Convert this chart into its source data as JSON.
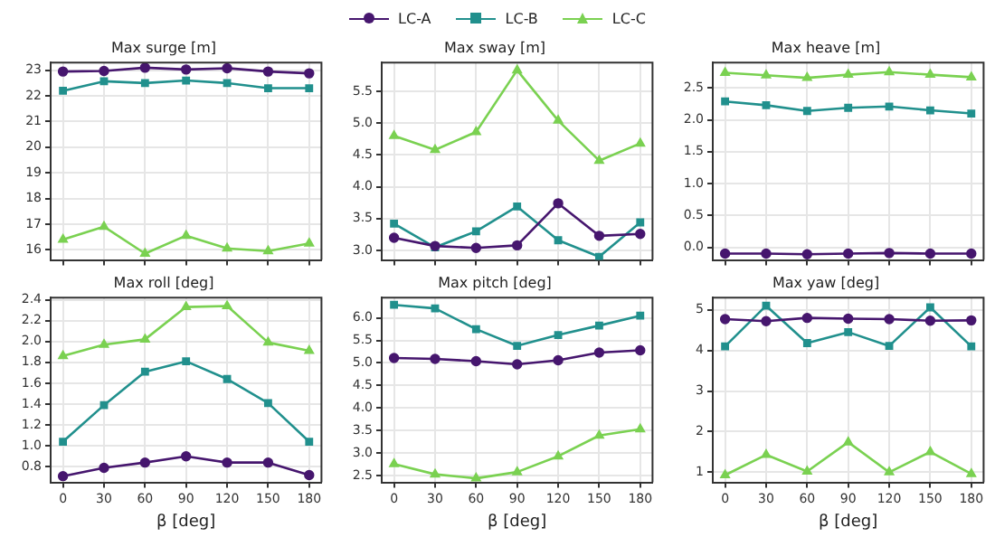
{
  "chart_data": [
    {
      "type": "line",
      "title": "Max surge [m]",
      "x": [
        0,
        30,
        60,
        90,
        120,
        150,
        180
      ],
      "xlim": [
        -9,
        189
      ],
      "xticks": [
        0,
        30,
        60,
        90,
        120,
        150,
        180
      ],
      "ylim": [
        15.6,
        23.3
      ],
      "yticks": [
        16,
        17,
        18,
        19,
        20,
        21,
        22,
        23
      ],
      "grid": true,
      "legend": "top",
      "tick_labels": "y",
      "series": [
        {
          "name": "LC-A",
          "color": "#46166e",
          "marker": "circle",
          "values": [
            22.95,
            22.97,
            23.1,
            23.03,
            23.08,
            22.95,
            22.88
          ]
        },
        {
          "name": "LC-B",
          "color": "#21908d",
          "marker": "square",
          "values": [
            22.2,
            22.57,
            22.5,
            22.6,
            22.5,
            22.3,
            22.3
          ]
        },
        {
          "name": "LC-C",
          "color": "#7ad151",
          "marker": "triangle",
          "values": [
            16.4,
            16.9,
            15.85,
            16.55,
            16.05,
            15.95,
            16.25
          ]
        }
      ]
    },
    {
      "type": "line",
      "title": "Max sway [m]",
      "x": [
        0,
        30,
        60,
        90,
        120,
        150,
        180
      ],
      "xlim": [
        -9,
        189
      ],
      "xticks": [
        0,
        30,
        60,
        90,
        120,
        150,
        180
      ],
      "ylim": [
        2.85,
        5.95
      ],
      "yticks": [
        {
          "value": 3,
          "label": "3.0"
        },
        3.5,
        {
          "value": 4,
          "label": "4.0"
        },
        4.5,
        {
          "value": 5,
          "label": "5.0"
        },
        5.5
      ],
      "grid": true,
      "tick_labels": "y",
      "series": [
        {
          "color": "#46166e",
          "marker": "circle",
          "values": [
            3.2,
            3.07,
            3.04,
            3.08,
            3.74,
            3.23,
            3.26
          ]
        },
        {
          "color": "#21908d",
          "marker": "square",
          "values": [
            3.42,
            3.05,
            3.3,
            3.69,
            3.16,
            2.9,
            3.44
          ]
        },
        {
          "color": "#7ad151",
          "marker": "triangle",
          "values": [
            4.8,
            4.58,
            4.86,
            5.83,
            5.04,
            4.41,
            4.68
          ]
        }
      ]
    },
    {
      "type": "line",
      "title": "Max heave [m]",
      "x": [
        0,
        30,
        60,
        90,
        120,
        150,
        180
      ],
      "xlim": [
        -9,
        189
      ],
      "xticks": [
        0,
        30,
        60,
        90,
        120,
        150,
        180
      ],
      "ylim": [
        -0.2,
        2.9
      ],
      "yticks": [
        {
          "value": 0,
          "label": "0.0"
        },
        0.5,
        {
          "value": 1,
          "label": "1.0"
        },
        1.5,
        {
          "value": 2,
          "label": "2.0"
        },
        2.5
      ],
      "grid": true,
      "tick_labels": "y",
      "series": [
        {
          "color": "#46166e",
          "marker": "circle",
          "values": [
            -0.1,
            -0.1,
            -0.11,
            -0.1,
            -0.09,
            -0.1,
            -0.1
          ]
        },
        {
          "color": "#21908d",
          "marker": "square",
          "values": [
            2.29,
            2.23,
            2.14,
            2.19,
            2.21,
            2.15,
            2.1
          ]
        },
        {
          "color": "#7ad151",
          "marker": "triangle",
          "values": [
            2.74,
            2.7,
            2.66,
            2.71,
            2.75,
            2.71,
            2.67
          ]
        }
      ]
    },
    {
      "type": "line",
      "title": "Max roll [deg]",
      "xlabel": "β [deg]",
      "x": [
        0,
        30,
        60,
        90,
        120,
        150,
        180
      ],
      "xlim": [
        -9,
        189
      ],
      "xticks": [
        0,
        30,
        60,
        90,
        120,
        150,
        180
      ],
      "ylim": [
        0.65,
        2.42
      ],
      "yticks": [
        0.8,
        {
          "value": 1,
          "label": "1.0"
        },
        1.2,
        1.4,
        1.6,
        1.8,
        {
          "value": 2,
          "label": "2.0"
        },
        2.2,
        2.4
      ],
      "grid": true,
      "series": [
        {
          "color": "#46166e",
          "marker": "circle",
          "values": [
            0.71,
            0.79,
            0.84,
            0.9,
            0.84,
            0.84,
            0.72
          ]
        },
        {
          "color": "#21908d",
          "marker": "square",
          "values": [
            1.04,
            1.39,
            1.71,
            1.81,
            1.64,
            1.41,
            1.04
          ]
        },
        {
          "color": "#7ad151",
          "marker": "triangle",
          "values": [
            1.86,
            1.97,
            2.02,
            2.33,
            2.34,
            1.99,
            1.91
          ]
        }
      ]
    },
    {
      "type": "line",
      "title": "Max pitch [deg]",
      "xlabel": "β [deg]",
      "x": [
        0,
        30,
        60,
        90,
        120,
        150,
        180
      ],
      "xlim": [
        -9,
        189
      ],
      "xticks": [
        0,
        30,
        60,
        90,
        120,
        150,
        180
      ],
      "ylim": [
        2.35,
        6.45
      ],
      "yticks": [
        2.5,
        {
          "value": 3,
          "label": "3.0"
        },
        3.5,
        {
          "value": 4,
          "label": "4.0"
        },
        4.5,
        {
          "value": 5,
          "label": "5.0"
        },
        5.5,
        {
          "value": 6,
          "label": "6.0"
        }
      ],
      "grid": true,
      "series": [
        {
          "color": "#46166e",
          "marker": "circle",
          "values": [
            5.11,
            5.09,
            5.04,
            4.97,
            5.06,
            5.23,
            5.28
          ]
        },
        {
          "color": "#21908d",
          "marker": "square",
          "values": [
            6.29,
            6.21,
            5.75,
            5.38,
            5.62,
            5.83,
            6.05
          ]
        },
        {
          "color": "#7ad151",
          "marker": "triangle",
          "values": [
            2.76,
            2.53,
            2.44,
            2.58,
            2.93,
            3.39,
            3.53
          ]
        }
      ]
    },
    {
      "type": "line",
      "title": "Max yaw [deg]",
      "xlabel": "β [deg]",
      "x": [
        0,
        30,
        60,
        90,
        120,
        150,
        180
      ],
      "xlim": [
        -9,
        189
      ],
      "xticks": [
        0,
        30,
        60,
        90,
        120,
        150,
        180
      ],
      "ylim": [
        0.75,
        5.3
      ],
      "yticks": [
        1,
        2,
        3,
        4,
        5
      ],
      "grid": true,
      "series": [
        {
          "color": "#46166e",
          "marker": "circle",
          "values": [
            4.77,
            4.72,
            4.8,
            4.78,
            4.77,
            4.73,
            4.74
          ]
        },
        {
          "color": "#21908d",
          "marker": "square",
          "values": [
            4.1,
            5.1,
            4.18,
            4.45,
            4.11,
            5.06,
            4.1
          ]
        },
        {
          "color": "#7ad151",
          "marker": "triangle",
          "values": [
            0.93,
            1.43,
            1.02,
            1.74,
            1.0,
            1.5,
            0.96
          ]
        }
      ]
    }
  ]
}
